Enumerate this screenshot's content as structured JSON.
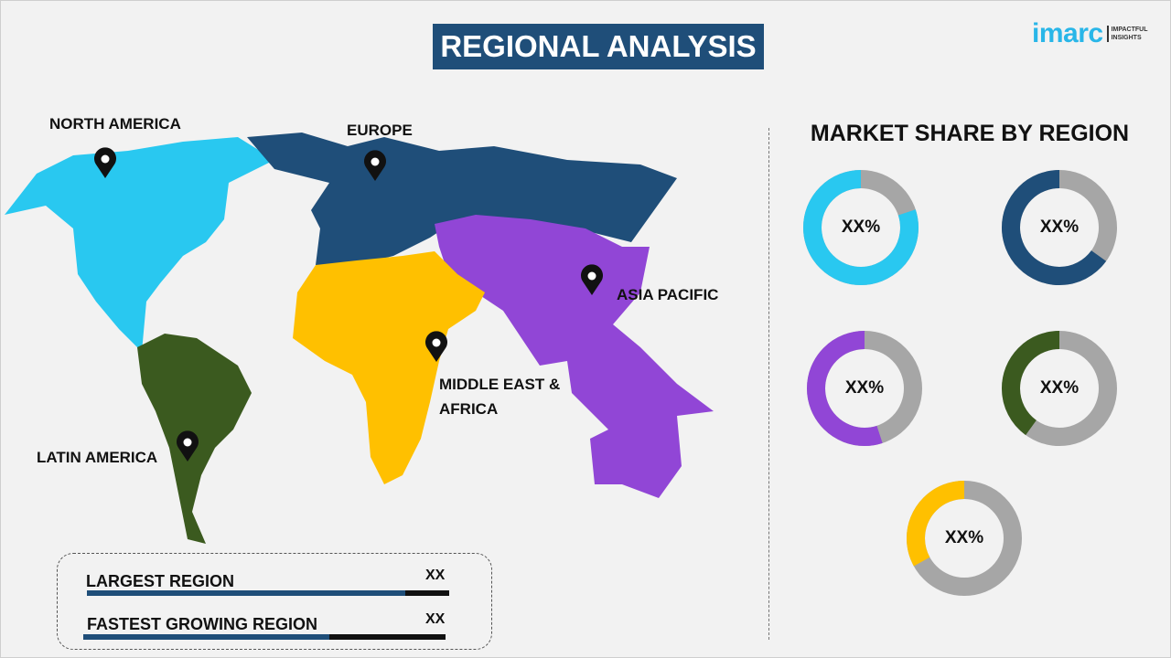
{
  "title": "REGIONAL ANALYSIS",
  "logo": {
    "word": "imarc",
    "tagline_1": "IMPACTFUL",
    "tagline_2": "INSIGHTS"
  },
  "map_labels": {
    "north_america": "NORTH AMERICA",
    "europe": "EUROPE",
    "asia_pacific": "ASIA PACIFIC",
    "mea_line1": "MIDDLE EAST &",
    "mea_line2": "AFRICA",
    "latin_america": "LATIN AMERICA"
  },
  "region_colors": {
    "north_america": "#29c8f0",
    "europe": "#1f4e79",
    "asia_pacific": "#9146d6",
    "mea": "#ffc000",
    "latin_america": "#3b5a1f"
  },
  "share": {
    "title": "MARKET SHARE BY REGION",
    "gray": "#a6a6a6",
    "donuts": [
      {
        "value_label": "XX%",
        "color": "#29c8f0",
        "fraction": 0.8
      },
      {
        "value_label": "XX%",
        "color": "#1f4e79",
        "fraction": 0.65
      },
      {
        "value_label": "XX%",
        "color": "#9146d6",
        "fraction": 0.55
      },
      {
        "value_label": "XX%",
        "color": "#3b5a1f",
        "fraction": 0.4
      },
      {
        "value_label": "XX%",
        "color": "#ffc000",
        "fraction": 0.33
      }
    ]
  },
  "summary": {
    "largest_label": "LARGEST REGION",
    "largest_value": "XX",
    "largest_fill": 0.88,
    "fastest_label": "FASTEST GROWING REGION",
    "fastest_value": "XX",
    "fastest_fill": 0.68
  }
}
